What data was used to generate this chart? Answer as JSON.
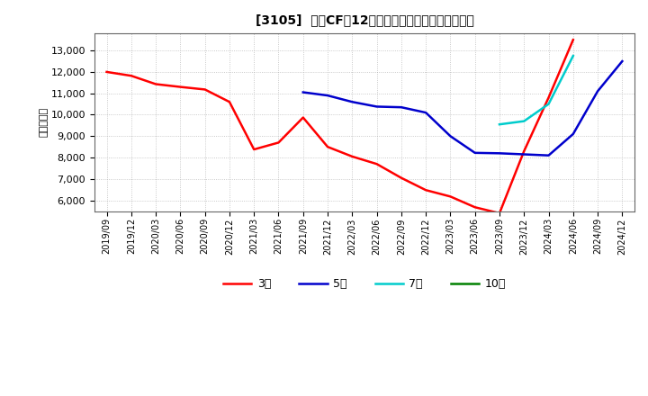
{
  "title": "[3105]  投賄CFの12か月移動合計の標準偏差の推移",
  "ylabel": "（百万円）",
  "background_color": "#ffffff",
  "plot_bg_color": "#ffffff",
  "grid_color": "#aaaaaa",
  "ylim": [
    5500,
    13800
  ],
  "yticks": [
    6000,
    7000,
    8000,
    9000,
    10000,
    11000,
    12000,
    13000
  ],
  "series": {
    "3year": {
      "color": "#ff0000",
      "label": "3年",
      "data": [
        [
          "2019/09",
          12000
        ],
        [
          "2019/12",
          11820
        ],
        [
          "2020/03",
          11430
        ],
        [
          "2020/06",
          11300
        ],
        [
          "2020/09",
          11180
        ],
        [
          "2020/12",
          10600
        ],
        [
          "2021/03",
          8380
        ],
        [
          "2021/06",
          8700
        ],
        [
          "2021/09",
          9870
        ],
        [
          "2021/12",
          8500
        ],
        [
          "2022/03",
          8050
        ],
        [
          "2022/06",
          7700
        ],
        [
          "2022/09",
          7050
        ],
        [
          "2022/12",
          6480
        ],
        [
          "2023/03",
          6180
        ],
        [
          "2023/06",
          5680
        ],
        [
          "2023/09",
          5400
        ],
        [
          "2023/12",
          8300
        ],
        [
          "2024/03",
          10800
        ],
        [
          "2024/06",
          13500
        ]
      ]
    },
    "5year": {
      "color": "#0000cc",
      "label": "5年",
      "data": [
        [
          "2021/09",
          11050
        ],
        [
          "2021/12",
          10900
        ],
        [
          "2022/03",
          10600
        ],
        [
          "2022/06",
          10380
        ],
        [
          "2022/09",
          10350
        ],
        [
          "2022/12",
          10100
        ],
        [
          "2023/03",
          9000
        ],
        [
          "2023/06",
          8220
        ],
        [
          "2023/09",
          8200
        ],
        [
          "2023/12",
          8150
        ],
        [
          "2024/03",
          8100
        ],
        [
          "2024/06",
          9100
        ],
        [
          "2024/09",
          11100
        ],
        [
          "2024/12",
          12500
        ]
      ]
    },
    "7year": {
      "color": "#00cccc",
      "label": "7年",
      "data": [
        [
          "2023/09",
          9550
        ],
        [
          "2023/12",
          9700
        ],
        [
          "2024/03",
          10500
        ],
        [
          "2024/06",
          12750
        ]
      ]
    },
    "10year": {
      "color": "#008000",
      "label": "10年",
      "data": []
    }
  },
  "x_tick_labels": [
    "2019/09",
    "2019/12",
    "2020/03",
    "2020/06",
    "2020/09",
    "2020/12",
    "2021/03",
    "2021/06",
    "2021/09",
    "2021/12",
    "2022/03",
    "2022/06",
    "2022/09",
    "2022/12",
    "2023/03",
    "2023/06",
    "2023/09",
    "2023/12",
    "2024/03",
    "2024/06",
    "2024/09",
    "2024/12"
  ]
}
